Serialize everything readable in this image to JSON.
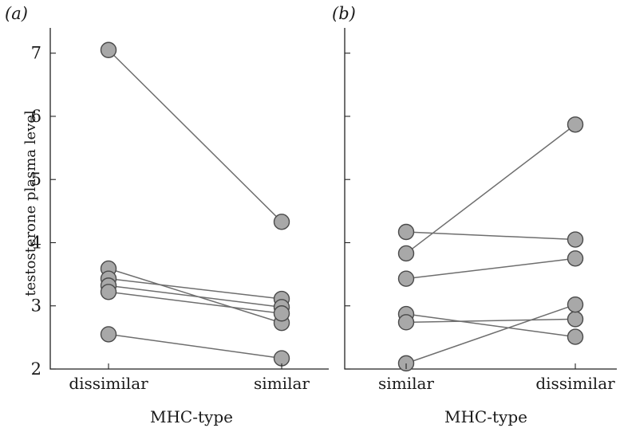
{
  "chart_data": [
    {
      "type": "line",
      "panel_label": "(a)",
      "xlabel": "MHC-type",
      "ylabel": "testosterone plasma level",
      "categories": [
        "dissimilar",
        "similar"
      ],
      "ylim": [
        2,
        7.4
      ],
      "yticks": [
        2,
        3,
        4,
        5,
        6,
        7
      ],
      "series": [
        {
          "values": [
            7.05,
            4.33
          ]
        },
        {
          "values": [
            3.59,
            2.73
          ]
        },
        {
          "values": [
            3.43,
            3.11
          ]
        },
        {
          "values": [
            3.32,
            2.98
          ]
        },
        {
          "values": [
            3.22,
            2.88
          ]
        },
        {
          "values": [
            2.55,
            2.17
          ]
        }
      ]
    },
    {
      "type": "line",
      "panel_label": "(b)",
      "xlabel": "MHC-type",
      "ylabel": "",
      "categories": [
        "similar",
        "dissimilar"
      ],
      "ylim": [
        2,
        7.4
      ],
      "yticks": [
        2,
        3,
        4,
        5,
        6,
        7
      ],
      "series": [
        {
          "values": [
            4.17,
            4.05
          ]
        },
        {
          "values": [
            3.83,
            5.87
          ]
        },
        {
          "values": [
            3.43,
            3.75
          ]
        },
        {
          "values": [
            2.87,
            2.51
          ]
        },
        {
          "values": [
            2.74,
            2.79
          ]
        },
        {
          "values": [
            2.09,
            3.02
          ]
        }
      ]
    }
  ]
}
